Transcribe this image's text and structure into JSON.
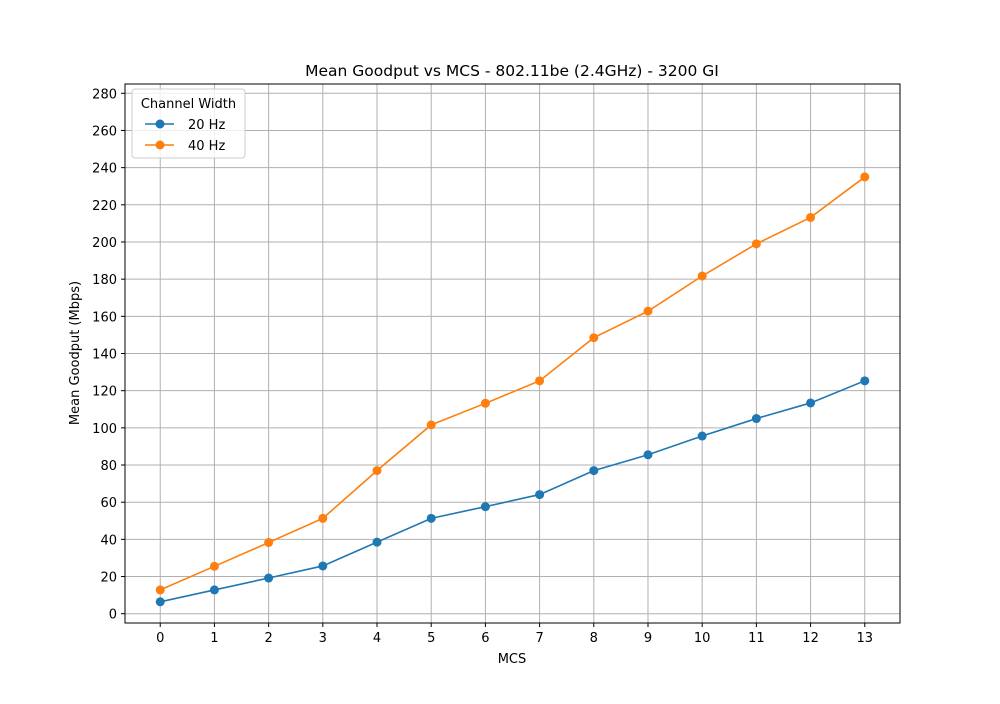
{
  "chart_data": {
    "type": "line",
    "title": "Mean Goodput vs MCS - 802.11be (2.4GHz) - 3200 GI",
    "xlabel": "MCS",
    "ylabel": "Mean Goodput (Mbps)",
    "x": [
      0,
      1,
      2,
      3,
      4,
      5,
      6,
      7,
      8,
      9,
      10,
      11,
      12,
      13
    ],
    "xlim": [
      -0.65,
      13.65
    ],
    "ylim": [
      -5,
      285
    ],
    "xticks": [
      0,
      1,
      2,
      3,
      4,
      5,
      6,
      7,
      8,
      9,
      10,
      11,
      12,
      13
    ],
    "yticks": [
      0,
      20,
      40,
      60,
      80,
      100,
      120,
      140,
      160,
      180,
      200,
      220,
      240,
      260,
      280
    ],
    "grid": true,
    "legend": {
      "title": "Channel Width",
      "placement": "top-left"
    },
    "series": [
      {
        "name": "20 Hz",
        "color": "#1f77b4",
        "marker": "circle",
        "values": [
          6.4,
          12.8,
          19.2,
          25.7,
          38.5,
          51.3,
          57.6,
          64.1,
          77,
          85.5,
          95.6,
          105,
          113.4,
          125.3
        ]
      },
      {
        "name": "40 Hz",
        "color": "#ff7f0e",
        "marker": "circle",
        "values": [
          12.8,
          25.5,
          38.3,
          51.3,
          77,
          101.6,
          113.2,
          125.3,
          148.5,
          162.8,
          181.7,
          199,
          213.2,
          235
        ]
      }
    ]
  }
}
